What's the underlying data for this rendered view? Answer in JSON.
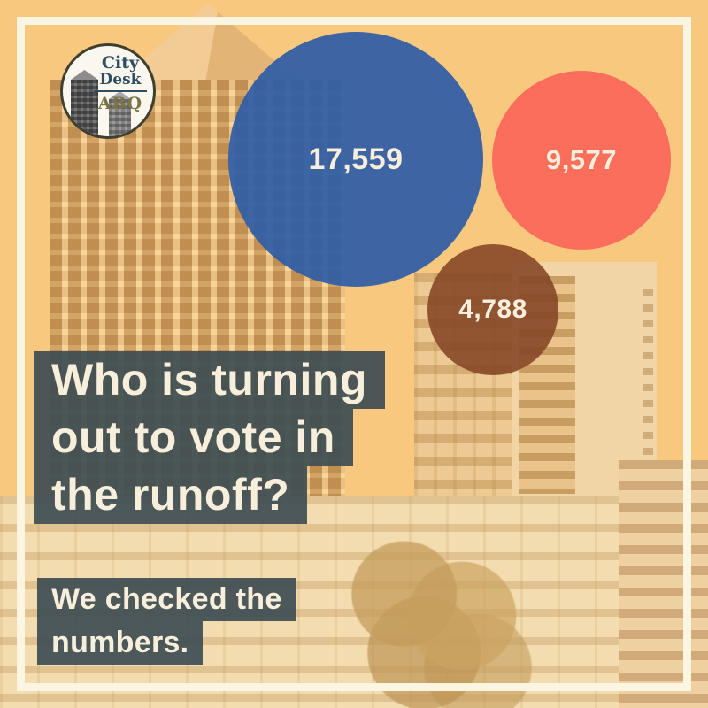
{
  "meta": {
    "title": "Who is turning out to vote in the runoff?"
  },
  "logo": {
    "line1": "City",
    "line2": "Desk",
    "line3": "ABQ"
  },
  "headline": {
    "line1": "Who is turning",
    "line2": "out to vote in",
    "line3": "the runoff?"
  },
  "subheadline": {
    "line1": "We checked the",
    "line2": "numbers."
  },
  "chart_data": {
    "type": "bubble",
    "title": "Who is turning out to vote in the runoff?",
    "subtitle": "We checked the numbers.",
    "series": [
      {
        "label": "17,559",
        "value": 17559,
        "color": "#3564A9"
      },
      {
        "label": "9,577",
        "value": 9577,
        "color": "#FC6E60"
      },
      {
        "label": "4,788",
        "value": 4788,
        "color": "#8E5130"
      }
    ],
    "layout_hint": "three circles sized proportionally to value, labels centered in cream text, over an orange-tinted downtown skyline photo"
  },
  "colors": {
    "background_tint": "#F9C87F",
    "frame": "#FBF5E2",
    "text_block": "#3E4D53",
    "text_cream": "#F7EFDB",
    "bubble_blue": "#3564A9",
    "bubble_coral": "#FC6E60",
    "bubble_brown": "#8E5130",
    "logo_navy": "#2F4D63",
    "logo_olive": "#7C7347"
  }
}
